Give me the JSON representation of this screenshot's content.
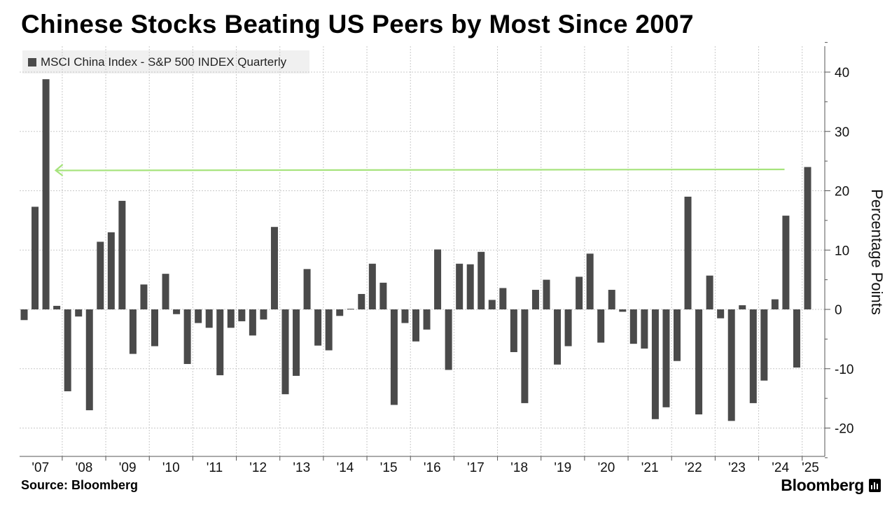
{
  "header": {
    "title": "Chinese Stocks Beating US Peers by Most Since 2007"
  },
  "legend": {
    "label": "MSCI China Index - S&P 500 INDEX Quarterly"
  },
  "footer": {
    "source": "Source: Bloomberg",
    "brand": "Bloomberg"
  },
  "colors": {
    "bar": "#4a4a4a",
    "arrow": "#a6e37c",
    "grid": "#c8c8c8"
  },
  "chart_data": {
    "type": "bar",
    "ylabel": "Percentage Points",
    "xlabel": "",
    "ylim": [
      -25,
      45
    ],
    "y_ticks": [
      -20,
      -10,
      0,
      10,
      20,
      30,
      40
    ],
    "y_axis_position": "right",
    "grid": true,
    "legend_position": "top-left",
    "x_tick_labels": [
      "'07",
      "'08",
      "'09",
      "'10",
      "'11",
      "'12",
      "'13",
      "'14",
      "'15",
      "'16",
      "'17",
      "'18",
      "'19",
      "'20",
      "'21",
      "'22",
      "'23",
      "'24",
      "'25"
    ],
    "categories": [
      "2007Q1",
      "2007Q2",
      "2007Q3",
      "2007Q4",
      "2008Q1",
      "2008Q2",
      "2008Q3",
      "2008Q4",
      "2009Q1",
      "2009Q2",
      "2009Q3",
      "2009Q4",
      "2010Q1",
      "2010Q2",
      "2010Q3",
      "2010Q4",
      "2011Q1",
      "2011Q2",
      "2011Q3",
      "2011Q4",
      "2012Q1",
      "2012Q2",
      "2012Q3",
      "2012Q4",
      "2013Q1",
      "2013Q2",
      "2013Q3",
      "2013Q4",
      "2014Q1",
      "2014Q2",
      "2014Q3",
      "2014Q4",
      "2015Q1",
      "2015Q2",
      "2015Q3",
      "2015Q4",
      "2016Q1",
      "2016Q2",
      "2016Q3",
      "2016Q4",
      "2017Q1",
      "2017Q2",
      "2017Q3",
      "2017Q4",
      "2018Q1",
      "2018Q2",
      "2018Q3",
      "2018Q4",
      "2019Q1",
      "2019Q2",
      "2019Q3",
      "2019Q4",
      "2020Q1",
      "2020Q2",
      "2020Q3",
      "2020Q4",
      "2021Q1",
      "2021Q2",
      "2021Q3",
      "2021Q4",
      "2022Q1",
      "2022Q2",
      "2022Q3",
      "2022Q4",
      "2023Q1",
      "2023Q2",
      "2023Q3",
      "2023Q4",
      "2024Q1",
      "2024Q2",
      "2024Q3",
      "2024Q4",
      "2025Q1"
    ],
    "series": [
      {
        "name": "MSCI China Index - S&P 500 INDEX Quarterly",
        "values": [
          -1.8,
          17.3,
          38.8,
          0.6,
          -13.8,
          -1.2,
          -17.0,
          11.4,
          13.0,
          18.3,
          -7.5,
          4.2,
          -6.2,
          6.0,
          -0.8,
          -9.2,
          -2.3,
          -3.1,
          -11.1,
          -3.1,
          -2.0,
          -4.4,
          -1.7,
          13.9,
          -14.3,
          -11.2,
          6.8,
          -6.1,
          -6.9,
          -1.1,
          0.1,
          2.6,
          7.7,
          4.5,
          -16.1,
          -2.3,
          -5.4,
          -3.4,
          10.1,
          -10.2,
          7.7,
          7.6,
          9.7,
          1.6,
          3.6,
          -7.2,
          -15.8,
          3.3,
          5.0,
          -9.3,
          -6.2,
          5.5,
          9.4,
          -5.6,
          3.3,
          -0.4,
          -5.8,
          -6.6,
          -18.5,
          -16.5,
          -8.7,
          19.0,
          -17.7,
          5.7,
          -1.5,
          -18.8,
          0.7,
          -15.8,
          -12.0,
          1.7,
          15.8,
          -9.8,
          24.0
        ]
      }
    ],
    "annotation": {
      "type": "arrow",
      "from_category": "2025Q1",
      "to_category": "2007Q3",
      "value": 23.6
    }
  }
}
